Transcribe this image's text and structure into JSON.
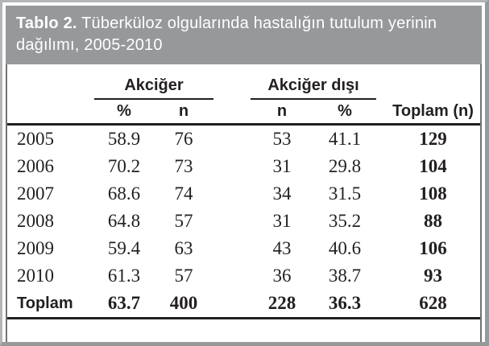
{
  "caption": {
    "label": "Tablo 2.",
    "text": " Tüberküloz olgularında hastalığın tutulum yerinin dağılımı, 2005-2010"
  },
  "table": {
    "group_headers": {
      "akciger": "Akciğer",
      "akciger_disi": "Akciğer dışı"
    },
    "sub_headers": [
      "%",
      "n",
      "n",
      "%",
      "Toplam (n)"
    ],
    "rows": [
      {
        "label": "2005",
        "cells": [
          "58.9",
          "76",
          "53",
          "41.1",
          "129"
        ]
      },
      {
        "label": "2006",
        "cells": [
          "70.2",
          "73",
          "31",
          "29.8",
          "104"
        ]
      },
      {
        "label": "2007",
        "cells": [
          "68.6",
          "74",
          "34",
          "31.5",
          "108"
        ]
      },
      {
        "label": "2008",
        "cells": [
          "64.8",
          "57",
          "31",
          "35.2",
          "88"
        ]
      },
      {
        "label": "2009",
        "cells": [
          "59.4",
          "63",
          "43",
          "40.6",
          "106"
        ]
      },
      {
        "label": "2010",
        "cells": [
          "61.3",
          "57",
          "36",
          "38.7",
          "93"
        ]
      },
      {
        "label": "Toplam",
        "cells": [
          "63.7",
          "400",
          "228",
          "36.3",
          "628"
        ]
      }
    ]
  },
  "colors": {
    "caption_bar": "#96989A",
    "caption_text": "#FFFFFF",
    "frame": "#97999B",
    "rule": "#231F20",
    "text": "#231F20"
  }
}
